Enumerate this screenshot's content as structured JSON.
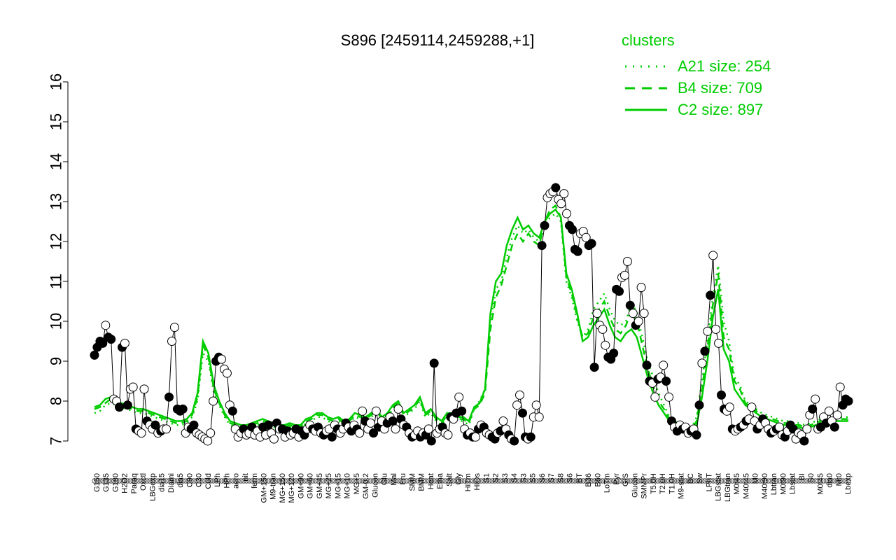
{
  "colors": {
    "accent": "#00cc00",
    "points_filled": "#000000",
    "points_open": "#ffffff",
    "series_line": "#000000"
  },
  "chart_data": {
    "type": "line",
    "title": "S896 [2459114,2459288,+1]",
    "xlabel": "",
    "ylabel": "",
    "ylim": [
      7,
      16
    ],
    "yticks": [
      7,
      8,
      9,
      10,
      11,
      12,
      13,
      14,
      15,
      16
    ],
    "grid": false,
    "legend": {
      "title": "clusters",
      "placement": "top-right",
      "entries": [
        {
          "label": "A21 size: 254",
          "style": "dotted"
        },
        {
          "label": "B4 size: 709",
          "style": "dashed"
        },
        {
          "label": "C2 size: 897",
          "style": "solid"
        }
      ]
    },
    "x_tick_labels": [
      "G150",
      "G135",
      "G180",
      "H2O2",
      "Paraq",
      "Oxctl",
      "LBGexp",
      "dia15",
      "Diami",
      "dia5",
      "C90",
      "C30",
      "Cold",
      "LPh",
      "HPh",
      "aero",
      "nit",
      "ferm",
      "GM+150",
      "M9-tran",
      "MG+150",
      "MG+120",
      "GM+90",
      "GM+60",
      "GM+45",
      "MG+25",
      "MG+15",
      "MG+10",
      "MG+5",
      "GM-0.2",
      "Glucon",
      "Glu",
      "Mal",
      "Fru",
      "SMM",
      "BMM",
      "Heat",
      "Etha",
      "Salt",
      "Gly",
      "HiTm",
      "HiOs",
      "S1",
      "S2",
      "S3",
      "S4",
      "S3",
      "S5",
      "S6",
      "S7",
      "S8",
      "S6",
      "BT",
      "B36",
      "B60",
      "LoTm",
      "Pyr",
      "G/S",
      "Glucon",
      "SMMPr",
      "T5.0H",
      "T2.0H",
      "T1.0H",
      "M9-stat",
      "BC",
      "Sw",
      "LPhT",
      "LBGstat",
      "LBGtran",
      "M0t45",
      "M40t45",
      "M0",
      "M40t90",
      "Lbtran",
      "M0t90",
      "Lbstat",
      "BI",
      "S0",
      "M0t45",
      "dia0",
      "Mt0",
      "Lbexp"
    ],
    "point_values": [
      9.15,
      9.35,
      9.5,
      9.45,
      9.9,
      9.6,
      9.55,
      8.05,
      8.0,
      7.85,
      9.35,
      9.45,
      7.9,
      8.3,
      8.35,
      7.3,
      7.25,
      7.2,
      8.3,
      7.5,
      7.4,
      7.3,
      7.4,
      7.2,
      7.25,
      7.3,
      7.3,
      8.1,
      9.5,
      9.85,
      7.8,
      7.75,
      7.8,
      7.2,
      7.35,
      7.3,
      7.4,
      7.2,
      7.15,
      7.1,
      7.05,
      7.0,
      7.2,
      8.0,
      9.0,
      9.1,
      9.05,
      8.8,
      8.7,
      7.9,
      7.75,
      7.3,
      7.1,
      7.2,
      7.3,
      7.15,
      7.2,
      7.35,
      7.15,
      7.25,
      7.1,
      7.35,
      7.15,
      7.4,
      7.2,
      7.05,
      7.45,
      7.3,
      7.3,
      7.1,
      7.25,
      7.15,
      7.2,
      7.3,
      7.1,
      7.25,
      7.15,
      7.3,
      7.4,
      7.3,
      7.25,
      7.35,
      7.2,
      7.15,
      7.25,
      7.3,
      7.1,
      7.4,
      7.3,
      7.2,
      7.3,
      7.45,
      7.35,
      7.25,
      7.4,
      7.3,
      7.2,
      7.75,
      7.5,
      7.3,
      7.45,
      7.2,
      7.75,
      7.35,
      7.5,
      7.3,
      7.45,
      7.6,
      7.5,
      7.3,
      7.8,
      7.55,
      7.4,
      7.35,
      7.2,
      7.1,
      7.15,
      7.25,
      7.1,
      7.2,
      7.15,
      7.3,
      7.0,
      8.95,
      7.2,
      7.3,
      7.35,
      7.2,
      7.15,
      7.6,
      7.55,
      7.7,
      8.1,
      7.75,
      7.3,
      7.15,
      7.2,
      7.1,
      7.1,
      7.3,
      7.4,
      7.35,
      7.2,
      7.15,
      7.1,
      7.05,
      7.2,
      7.25,
      7.5,
      7.3,
      7.15,
      7.05,
      7.0,
      7.9,
      8.15,
      7.7,
      7.1,
      7.05,
      7.1,
      7.6,
      7.9,
      7.6,
      11.9,
      12.4,
      13.1,
      13.2,
      13.25,
      13.35,
      13.05,
      12.95,
      13.2,
      12.7,
      12.4,
      12.3,
      11.8,
      11.75,
      12.2,
      12.25,
      12.1,
      11.9,
      11.95,
      8.85,
      10.2,
      9.9,
      9.8,
      9.4,
      9.1,
      9.05,
      9.2,
      10.8,
      10.75,
      11.1,
      11.15,
      11.5,
      10.4,
      10.2,
      9.9,
      10.0,
      10.85,
      10.2,
      8.9,
      8.5,
      8.45,
      8.1,
      8.55,
      8.6,
      8.9,
      8.5,
      8.1,
      7.5,
      7.35,
      7.25,
      7.4,
      7.3,
      7.35,
      7.2,
      7.25,
      7.3,
      7.15,
      7.9,
      8.95,
      9.25,
      9.75,
      10.65,
      11.65,
      9.8,
      9.45,
      8.15,
      7.8,
      7.75,
      7.85,
      7.3,
      7.25,
      7.3,
      7.35,
      7.4,
      7.5,
      7.55,
      7.85,
      7.5,
      7.3,
      7.4,
      7.55,
      7.45,
      7.3,
      7.2,
      7.25,
      7.3,
      7.35,
      7.15,
      7.1,
      7.25,
      7.4,
      7.3,
      7.05,
      7.2,
      7.15,
      7.0,
      7.3,
      7.65,
      7.8,
      8.05,
      7.3,
      7.35,
      7.6,
      7.45,
      7.75,
      7.5,
      7.35,
      7.65,
      8.35,
      7.9,
      8.05,
      8.0
    ],
    "point_open": [
      0,
      0,
      0,
      0,
      1,
      0,
      0,
      1,
      1,
      0,
      0,
      1,
      0,
      1,
      1,
      0,
      1,
      1,
      1,
      0,
      1,
      1,
      0,
      1,
      0,
      1,
      1,
      0,
      1,
      1,
      0,
      0,
      0,
      1,
      1,
      0,
      0,
      1,
      1,
      1,
      1,
      1,
      1,
      1,
      0,
      0,
      1,
      1,
      1,
      1,
      0,
      1,
      1,
      1,
      0,
      1,
      1,
      0,
      1,
      1,
      1,
      0,
      1,
      0,
      1,
      1,
      0,
      1,
      0,
      1,
      0,
      1,
      1,
      0,
      1,
      0,
      0,
      1,
      1,
      0,
      1,
      0,
      1,
      0,
      1,
      1,
      0,
      1,
      0,
      1,
      1,
      0,
      1,
      0,
      1,
      0,
      1,
      1,
      0,
      1,
      1,
      0,
      1,
      0,
      1,
      1,
      0,
      1,
      0,
      1,
      1,
      0,
      1,
      0,
      1,
      0,
      1,
      1,
      0,
      1,
      0,
      1,
      0,
      0,
      1,
      1,
      0,
      1,
      1,
      0,
      1,
      0,
      1,
      0,
      1,
      0,
      1,
      0,
      1,
      0,
      1,
      0,
      1,
      1,
      0,
      0,
      1,
      0,
      1,
      1,
      0,
      1,
      0,
      1,
      1,
      0,
      0,
      1,
      0,
      1,
      1,
      1,
      0,
      0,
      1,
      1,
      1,
      0,
      1,
      1,
      1,
      1,
      0,
      0,
      0,
      0,
      1,
      1,
      1,
      0,
      0,
      0,
      1,
      1,
      1,
      1,
      0,
      0,
      0,
      0,
      0,
      1,
      1,
      1,
      0,
      1,
      0,
      1,
      1,
      1,
      0,
      0,
      1,
      1,
      0,
      1,
      1,
      0,
      1,
      0,
      1,
      0,
      1,
      0,
      1,
      1,
      0,
      1,
      0,
      0,
      1,
      0,
      1,
      0,
      1,
      1,
      1,
      0,
      0,
      1,
      1,
      0,
      1,
      1,
      0,
      1,
      0,
      1,
      1,
      1,
      0,
      1,
      0,
      1,
      1,
      0,
      1,
      0,
      1,
      1,
      0,
      1,
      0,
      0,
      1,
      1,
      1,
      0,
      1,
      1,
      0,
      1,
      1,
      0,
      1,
      0,
      1,
      1,
      0,
      1,
      1,
      0,
      0,
      0
    ],
    "cluster_lines": {
      "A21": [
        7.7,
        7.75,
        7.9,
        7.95,
        7.9,
        7.85,
        7.8,
        7.75,
        7.7,
        7.7,
        7.65,
        7.6,
        7.55,
        7.5,
        7.45,
        7.4,
        7.4,
        7.45,
        7.6,
        8.0,
        9.2,
        9.0,
        8.2,
        7.9,
        7.6,
        7.4,
        7.35,
        7.3,
        7.3,
        7.35,
        7.4,
        7.45,
        7.4,
        7.35,
        7.3,
        7.3,
        7.35,
        7.3,
        7.3,
        7.45,
        7.5,
        7.6,
        7.6,
        7.5,
        7.45,
        7.5,
        7.4,
        7.45,
        7.6,
        7.55,
        7.5,
        7.6,
        7.7,
        7.5,
        7.6,
        7.8,
        7.9,
        7.6,
        7.7,
        7.8,
        8.0,
        7.6,
        7.7,
        7.5,
        7.4,
        7.6,
        7.6,
        7.5,
        7.5,
        7.4,
        7.8,
        8.0,
        8.3,
        10.0,
        10.8,
        11.0,
        11.6,
        12.1,
        12.4,
        12.2,
        12.3,
        12.1,
        12.0,
        12.4,
        12.6,
        12.7,
        12.5,
        11.0,
        10.6,
        10.0,
        9.6,
        9.8,
        10.3,
        10.5,
        10.7,
        10.3,
        10.0,
        9.9,
        10.0,
        10.5,
        10.2,
        9.6,
        9.0,
        8.6,
        8.2,
        7.9,
        7.6,
        7.5,
        7.4,
        7.35,
        7.3,
        7.6,
        8.5,
        9.5,
        10.6,
        11.4,
        10.0,
        9.5,
        8.6,
        8.4,
        8.0,
        7.9,
        7.8,
        7.7,
        7.65,
        7.6,
        7.55,
        7.5,
        7.5,
        7.45,
        7.45,
        7.4,
        7.45,
        7.5,
        7.55,
        7.55,
        7.6,
        7.6,
        7.6,
        7.6
      ],
      "B4": [
        7.8,
        7.85,
        7.95,
        8.05,
        7.95,
        7.9,
        7.85,
        7.8,
        7.75,
        7.75,
        7.7,
        7.65,
        7.6,
        7.55,
        7.5,
        7.45,
        7.45,
        7.5,
        7.65,
        8.1,
        9.4,
        9.1,
        8.3,
        7.95,
        7.65,
        7.45,
        7.4,
        7.35,
        7.35,
        7.4,
        7.45,
        7.5,
        7.45,
        7.4,
        7.35,
        7.35,
        7.4,
        7.35,
        7.35,
        7.5,
        7.55,
        7.65,
        7.65,
        7.55,
        7.5,
        7.55,
        7.45,
        7.5,
        7.65,
        7.6,
        7.55,
        7.65,
        7.75,
        7.55,
        7.65,
        7.85,
        7.95,
        7.65,
        7.75,
        7.85,
        8.05,
        7.65,
        7.75,
        7.55,
        7.45,
        7.65,
        7.65,
        7.55,
        7.55,
        7.45,
        7.8,
        7.9,
        8.2,
        9.8,
        10.6,
        10.9,
        11.4,
        11.9,
        12.2,
        12.0,
        12.2,
        12.0,
        11.9,
        12.5,
        12.8,
        12.9,
        12.6,
        11.1,
        10.7,
        10.1,
        9.6,
        9.7,
        10.1,
        10.3,
        10.5,
        10.1,
        9.8,
        9.7,
        9.9,
        10.3,
        10.0,
        9.4,
        8.8,
        8.4,
        8.0,
        7.8,
        7.55,
        7.45,
        7.35,
        7.3,
        7.25,
        7.5,
        8.3,
        9.3,
        10.4,
        11.2,
        9.6,
        9.3,
        8.5,
        8.3,
        7.95,
        7.85,
        7.75,
        7.65,
        7.6,
        7.55,
        7.5,
        7.45,
        7.45,
        7.4,
        7.4,
        7.35,
        7.4,
        7.45,
        7.5,
        7.5,
        7.55,
        7.55,
        7.55,
        7.55
      ],
      "C2": [
        7.85,
        7.9,
        8.05,
        8.1,
        8.0,
        7.95,
        7.9,
        7.85,
        7.8,
        7.8,
        7.75,
        7.7,
        7.65,
        7.6,
        7.55,
        7.5,
        7.5,
        7.55,
        7.7,
        8.2,
        9.5,
        9.2,
        8.4,
        8.0,
        7.7,
        7.5,
        7.45,
        7.4,
        7.4,
        7.45,
        7.5,
        7.55,
        7.5,
        7.45,
        7.4,
        7.4,
        7.45,
        7.4,
        7.4,
        7.55,
        7.6,
        7.7,
        7.7,
        7.6,
        7.55,
        7.6,
        7.5,
        7.55,
        7.7,
        7.65,
        7.6,
        7.7,
        7.8,
        7.6,
        7.7,
        7.9,
        8.0,
        7.7,
        7.8,
        7.9,
        8.1,
        7.7,
        7.8,
        7.6,
        7.5,
        7.7,
        7.7,
        7.6,
        7.6,
        7.5,
        7.85,
        7.95,
        8.3,
        10.2,
        11.0,
        11.2,
        11.9,
        12.3,
        12.6,
        12.3,
        12.4,
        12.2,
        12.1,
        12.5,
        12.7,
        12.8,
        12.6,
        11.2,
        10.8,
        10.2,
        9.5,
        9.6,
        9.9,
        10.1,
        10.3,
        9.9,
        9.6,
        9.5,
        9.7,
        9.8,
        9.6,
        9.1,
        8.6,
        8.2,
        7.9,
        7.7,
        7.5,
        7.4,
        7.3,
        7.25,
        7.2,
        7.4,
        8.1,
        9.0,
        10.1,
        10.8,
        9.3,
        9.0,
        8.3,
        8.1,
        7.9,
        7.8,
        7.7,
        7.6,
        7.55,
        7.5,
        7.45,
        7.4,
        7.4,
        7.35,
        7.35,
        7.3,
        7.35,
        7.4,
        7.45,
        7.45,
        7.5,
        7.5,
        7.5,
        7.5
      ]
    }
  }
}
